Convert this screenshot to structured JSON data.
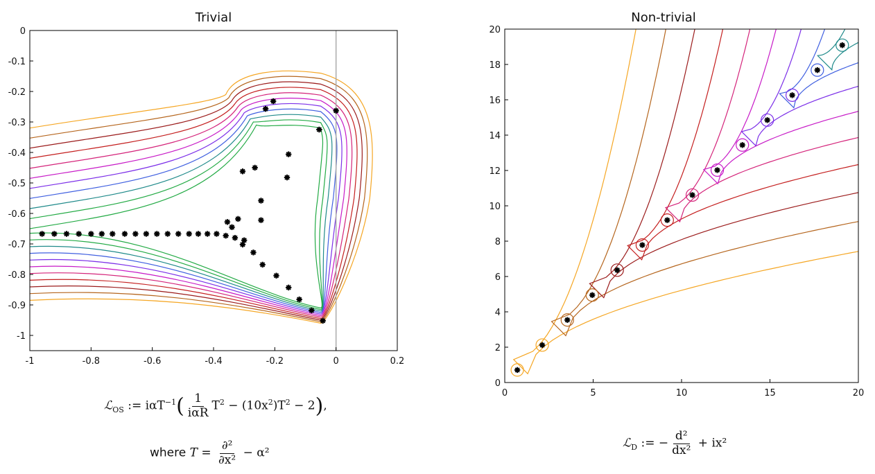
{
  "chart_data": [
    {
      "type": "scatter",
      "title": "Trivial",
      "xlim": [
        -1,
        0.2
      ],
      "ylim": [
        -1.05,
        0
      ],
      "x_ticks": [
        "-1",
        "-0.8",
        "-0.6",
        "-0.4",
        "-0.2",
        "0",
        "0.2"
      ],
      "x_tick_values": [
        -1,
        -0.8,
        -0.6,
        -0.4,
        -0.2,
        0,
        0.2
      ],
      "y_ticks": [
        "0",
        "-0.1",
        "-0.2",
        "-0.3",
        "-0.4",
        "-0.5",
        "-0.6",
        "-0.7",
        "-0.8",
        "-0.9",
        "-1"
      ],
      "y_tick_values": [
        0,
        -0.1,
        -0.2,
        -0.3,
        -0.4,
        -0.5,
        -0.6,
        -0.7,
        -0.8,
        -0.9,
        -1
      ],
      "vertical_line_x": 0,
      "series": [
        {
          "marker": "black-star",
          "points": [
            [
              -0.96,
              -0.667
            ],
            [
              -0.92,
              -0.667
            ],
            [
              -0.88,
              -0.667
            ],
            [
              -0.84,
              -0.667
            ],
            [
              -0.8,
              -0.667
            ],
            [
              -0.765,
              -0.667
            ],
            [
              -0.73,
              -0.667
            ],
            [
              -0.69,
              -0.667
            ],
            [
              -0.655,
              -0.667
            ],
            [
              -0.62,
              -0.667
            ],
            [
              -0.585,
              -0.667
            ],
            [
              -0.55,
              -0.667
            ],
            [
              -0.515,
              -0.667
            ],
            [
              -0.48,
              -0.667
            ],
            [
              -0.45,
              -0.667
            ],
            [
              -0.42,
              -0.667
            ],
            [
              -0.39,
              -0.667
            ],
            [
              -0.36,
              -0.673
            ],
            [
              -0.33,
              -0.68
            ],
            [
              -0.305,
              -0.702
            ],
            [
              -0.3,
              -0.688
            ],
            [
              -0.355,
              -0.628
            ],
            [
              -0.34,
              -0.645
            ],
            [
              -0.32,
              -0.618
            ],
            [
              -0.27,
              -0.728
            ],
            [
              -0.24,
              -0.768
            ],
            [
              -0.195,
              -0.804
            ],
            [
              -0.155,
              -0.843
            ],
            [
              -0.12,
              -0.882
            ],
            [
              -0.08,
              -0.918
            ],
            [
              -0.043,
              -0.952
            ],
            [
              -0.245,
              -0.622
            ],
            [
              -0.245,
              -0.558
            ],
            [
              -0.305,
              -0.462
            ],
            [
              -0.265,
              -0.45
            ],
            [
              -0.16,
              -0.482
            ],
            [
              -0.155,
              -0.406
            ],
            [
              -0.055,
              -0.325
            ],
            [
              -0.23,
              -0.257
            ],
            [
              -0.205,
              -0.232
            ],
            [
              0,
              -0.263
            ]
          ]
        }
      ],
      "contour_colors": [
        "#f5a623",
        "#b5651d",
        "#9b1b1b",
        "#c41e1e",
        "#d4237a",
        "#c71ac7",
        "#7b2ee8",
        "#3f5fe0",
        "#1f8a8a",
        "#22aa44"
      ]
    },
    {
      "type": "scatter",
      "title": "Non-trivial",
      "xlim": [
        0,
        20
      ],
      "ylim": [
        0,
        20
      ],
      "x_ticks": [
        "0",
        "5",
        "10",
        "15",
        "20"
      ],
      "x_tick_values": [
        0,
        5,
        10,
        15,
        20
      ],
      "y_ticks": [
        "0",
        "2",
        "4",
        "6",
        "8",
        "10",
        "12",
        "14",
        "16",
        "18",
        "20"
      ],
      "y_tick_values": [
        0,
        2,
        4,
        6,
        8,
        10,
        12,
        14,
        16,
        18,
        20
      ],
      "series": [
        {
          "marker": "black-star",
          "points": [
            [
              0.71,
              0.71
            ],
            [
              2.12,
              2.12
            ],
            [
              3.54,
              3.54
            ],
            [
              4.95,
              4.95
            ],
            [
              6.36,
              6.36
            ],
            [
              7.78,
              7.78
            ],
            [
              9.19,
              9.19
            ],
            [
              10.61,
              10.61
            ],
            [
              12.02,
              12.02
            ],
            [
              13.44,
              13.44
            ],
            [
              14.85,
              14.85
            ],
            [
              16.26,
              16.26
            ],
            [
              17.68,
              17.68
            ],
            [
              19.09,
              19.09
            ]
          ]
        }
      ],
      "contour_colors": [
        "#f5a623",
        "#b5651d",
        "#9b1b1b",
        "#c41e1e",
        "#d4237a",
        "#c71ac7",
        "#7b2ee8",
        "#3f5fe0",
        "#1f8a8a",
        "#22aa44"
      ]
    }
  ],
  "formulas": {
    "left_lhs": "ℒ",
    "left_lhs_sub": "OS",
    "left_assign": " := iαT",
    "left_inv": "−1",
    "left_frac_num": "1",
    "left_frac_den": "iαR",
    "left_t2a": "T",
    "left_t2a_sup": "2",
    "left_mid": " − (10x",
    "left_mid_sup": "2",
    "left_mid2": ")T",
    "left_mid2_sup": "2",
    "left_tail": " − 2",
    "left_end": ",",
    "where_word": "where ",
    "where_T": "T = ",
    "where_num": "∂²",
    "where_den": "∂x²",
    "where_tail": " − α²",
    "right_lhs": "ℒ",
    "right_lhs_sub": "D",
    "right_assign": " := −",
    "right_num": "d²",
    "right_den": "dx²",
    "right_tail": " + ix²"
  }
}
